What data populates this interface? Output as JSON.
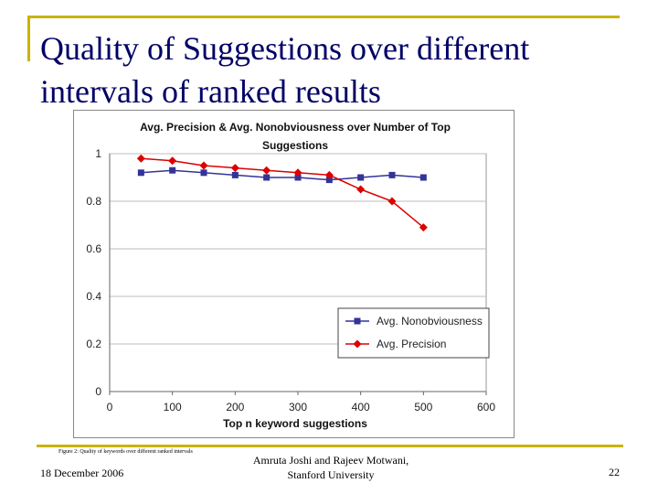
{
  "slide": {
    "title_line1": "Quality of Suggestions over different",
    "title_line2": "intervals of ranked results",
    "figure_caption": "Figure 2: Quality of keywords over different ranked intervals",
    "date": "18 December 2006",
    "authors_line1": "Amruta Joshi and Rajeev Motwani,",
    "authors_line2": "Stanford University",
    "page_number": "22",
    "accent_color": "#c8b400",
    "title_color": "#000066"
  },
  "chart_data": {
    "type": "line",
    "title_line1": "Avg. Precision & Avg. Nonobviousness over Number of Top",
    "title_line2": "Suggestions",
    "xlabel": "Top n keyword suggestions",
    "ylabel": "",
    "xlim": [
      0,
      600
    ],
    "ylim": [
      0,
      1
    ],
    "x_ticks": [
      0,
      100,
      200,
      300,
      400,
      500,
      600
    ],
    "y_ticks": [
      0,
      0.2,
      0.4,
      0.6,
      0.8,
      1
    ],
    "y_tick_labels": [
      "0",
      "0.2",
      "0.4",
      "0.6",
      "0.8",
      "1"
    ],
    "grid": true,
    "legend_position": "bottom-right",
    "x": [
      50,
      100,
      150,
      200,
      250,
      300,
      350,
      400,
      450,
      500
    ],
    "series": [
      {
        "name": "Avg. Nonobviousness",
        "color": "#333399",
        "marker": "square",
        "values": [
          0.92,
          0.93,
          0.92,
          0.91,
          0.9,
          0.9,
          0.89,
          0.9,
          0.91,
          0.9
        ]
      },
      {
        "name": "Avg. Precision",
        "color": "#dd0000",
        "marker": "diamond",
        "values": [
          0.98,
          0.97,
          0.95,
          0.94,
          0.93,
          0.92,
          0.91,
          0.85,
          0.8,
          0.69
        ]
      }
    ]
  }
}
